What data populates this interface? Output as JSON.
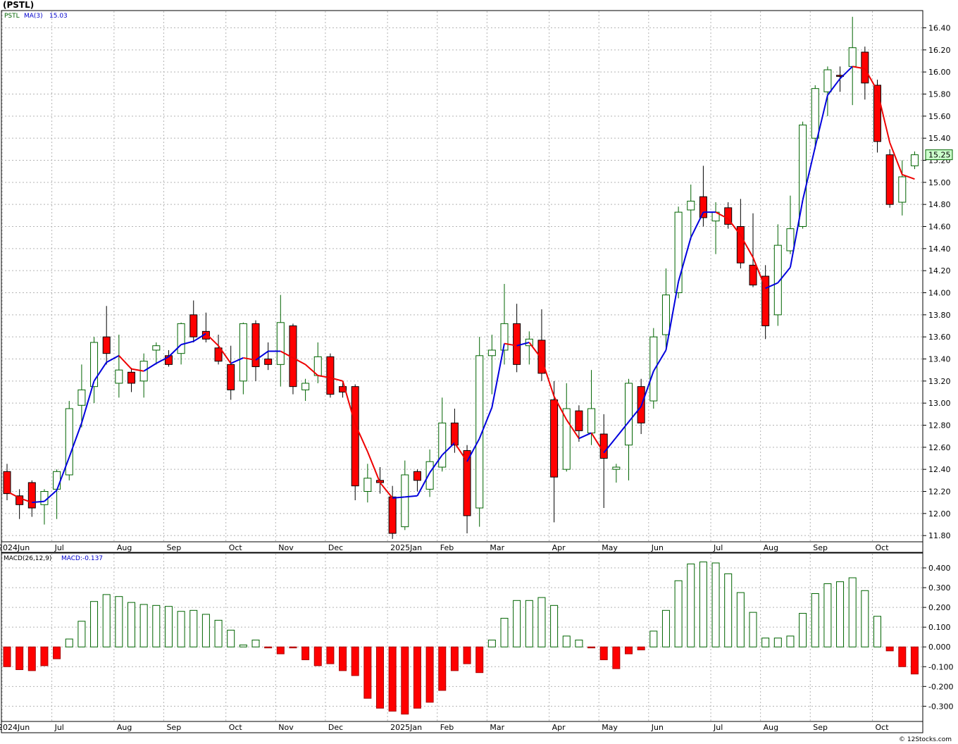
{
  "header": {
    "symbol_title": "(PSTL)"
  },
  "price_panel": {
    "legend_symbol": "PSTL",
    "legend_ma": "MA(3)",
    "legend_ma_value": "15.03",
    "last_price_label": "15.25"
  },
  "macd_panel": {
    "legend_params": "MACD(26,12,9)",
    "legend_value": "MACD:-0.137"
  },
  "footer": {
    "credit": "© 12Stocks.com"
  },
  "colors": {
    "up": "#006400",
    "down": "#ff0000",
    "ma_up": "#0000dd",
    "ma_down": "#ee0000",
    "grid": "#b4b4b4",
    "last_box": "#ccffcc"
  },
  "chart_data": [
    {
      "type": "candlestick",
      "title": "(PSTL)",
      "interval": "weekly",
      "ylim": [
        11.75,
        16.55
      ],
      "y_ticks": [
        "11.80",
        "12.00",
        "12.20",
        "12.40",
        "12.60",
        "12.80",
        "13.00",
        "13.20",
        "13.40",
        "13.60",
        "13.80",
        "14.00",
        "14.20",
        "14.40",
        "14.60",
        "14.80",
        "15.00",
        "15.20",
        "15.40",
        "15.60",
        "15.80",
        "16.00",
        "16.20",
        "16.40"
      ],
      "x_labels": [
        "2024Jun",
        "Jul",
        "Aug",
        "Sep",
        "Oct",
        "Nov",
        "Dec",
        "2025Jan",
        "Feb",
        "Mar",
        "Apr",
        "May",
        "Jun",
        "Jul",
        "Aug",
        "Sep",
        "Oct"
      ],
      "x_label_week": [
        0,
        4,
        9,
        13,
        18,
        22,
        26,
        31,
        35,
        39,
        44,
        48,
        52,
        57,
        61,
        65,
        70
      ],
      "candles": [
        {
          "o": 12.38,
          "h": 12.45,
          "l": 12.12,
          "c": 12.18
        },
        {
          "o": 12.16,
          "h": 12.22,
          "l": 11.95,
          "c": 12.08
        },
        {
          "o": 12.28,
          "h": 12.3,
          "l": 11.97,
          "c": 12.05
        },
        {
          "o": 12.08,
          "h": 12.22,
          "l": 11.9,
          "c": 12.2
        },
        {
          "o": 12.22,
          "h": 12.4,
          "l": 11.95,
          "c": 12.38
        },
        {
          "o": 12.35,
          "h": 13.02,
          "l": 12.3,
          "c": 12.95
        },
        {
          "o": 12.98,
          "h": 13.35,
          "l": 12.78,
          "c": 13.12
        },
        {
          "o": 13.15,
          "h": 13.6,
          "l": 13.0,
          "c": 13.55
        },
        {
          "o": 13.6,
          "h": 13.88,
          "l": 13.35,
          "c": 13.45
        },
        {
          "o": 13.18,
          "h": 13.62,
          "l": 13.05,
          "c": 13.3
        },
        {
          "o": 13.28,
          "h": 13.32,
          "l": 13.1,
          "c": 13.18
        },
        {
          "o": 13.2,
          "h": 13.45,
          "l": 13.05,
          "c": 13.38
        },
        {
          "o": 13.48,
          "h": 13.55,
          "l": 13.35,
          "c": 13.52
        },
        {
          "o": 13.43,
          "h": 13.48,
          "l": 13.33,
          "c": 13.35
        },
        {
          "o": 13.45,
          "h": 13.73,
          "l": 13.35,
          "c": 13.72
        },
        {
          "o": 13.8,
          "h": 13.93,
          "l": 13.55,
          "c": 13.6
        },
        {
          "o": 13.65,
          "h": 13.82,
          "l": 13.55,
          "c": 13.58
        },
        {
          "o": 13.5,
          "h": 13.62,
          "l": 13.35,
          "c": 13.38
        },
        {
          "o": 13.35,
          "h": 13.52,
          "l": 13.03,
          "c": 13.12
        },
        {
          "o": 13.2,
          "h": 13.73,
          "l": 13.08,
          "c": 13.72
        },
        {
          "o": 13.72,
          "h": 13.75,
          "l": 13.2,
          "c": 13.33
        },
        {
          "o": 13.4,
          "h": 13.55,
          "l": 13.3,
          "c": 13.35
        },
        {
          "o": 13.35,
          "h": 13.98,
          "l": 13.15,
          "c": 13.73
        },
        {
          "o": 13.7,
          "h": 13.72,
          "l": 13.08,
          "c": 13.15
        },
        {
          "o": 13.12,
          "h": 13.22,
          "l": 13.02,
          "c": 13.18
        },
        {
          "o": 13.25,
          "h": 13.55,
          "l": 13.18,
          "c": 13.42
        },
        {
          "o": 13.42,
          "h": 13.45,
          "l": 13.05,
          "c": 13.08
        },
        {
          "o": 13.15,
          "h": 13.2,
          "l": 13.05,
          "c": 13.1
        },
        {
          "o": 13.15,
          "h": 13.17,
          "l": 12.12,
          "c": 12.25
        },
        {
          "o": 12.2,
          "h": 12.45,
          "l": 12.1,
          "c": 12.32
        },
        {
          "o": 12.3,
          "h": 12.42,
          "l": 12.18,
          "c": 12.28
        },
        {
          "o": 12.15,
          "h": 12.25,
          "l": 11.77,
          "c": 11.82
        },
        {
          "o": 11.88,
          "h": 12.48,
          "l": 11.85,
          "c": 12.35
        },
        {
          "o": 12.38,
          "h": 12.4,
          "l": 12.2,
          "c": 12.3
        },
        {
          "o": 12.22,
          "h": 12.58,
          "l": 12.15,
          "c": 12.47
        },
        {
          "o": 12.42,
          "h": 13.05,
          "l": 12.38,
          "c": 12.82
        },
        {
          "o": 12.82,
          "h": 12.95,
          "l": 12.55,
          "c": 12.62
        },
        {
          "o": 12.57,
          "h": 12.62,
          "l": 11.82,
          "c": 11.98
        },
        {
          "o": 12.05,
          "h": 13.6,
          "l": 11.88,
          "c": 13.43
        },
        {
          "o": 13.43,
          "h": 13.62,
          "l": 13.08,
          "c": 13.48
        },
        {
          "o": 13.48,
          "h": 14.08,
          "l": 13.35,
          "c": 13.72
        },
        {
          "o": 13.72,
          "h": 13.9,
          "l": 13.28,
          "c": 13.35
        },
        {
          "o": 13.52,
          "h": 13.65,
          "l": 13.35,
          "c": 13.58
        },
        {
          "o": 13.57,
          "h": 13.85,
          "l": 13.2,
          "c": 13.27
        },
        {
          "o": 13.03,
          "h": 13.2,
          "l": 11.92,
          "c": 12.33
        },
        {
          "o": 12.4,
          "h": 13.18,
          "l": 12.38,
          "c": 12.95
        },
        {
          "o": 12.93,
          "h": 12.98,
          "l": 12.65,
          "c": 12.75
        },
        {
          "o": 12.73,
          "h": 13.3,
          "l": 12.62,
          "c": 12.95
        },
        {
          "o": 12.72,
          "h": 12.9,
          "l": 12.05,
          "c": 12.5
        },
        {
          "o": 12.4,
          "h": 12.45,
          "l": 12.28,
          "c": 12.42
        },
        {
          "o": 12.62,
          "h": 13.22,
          "l": 12.3,
          "c": 13.18
        },
        {
          "o": 13.15,
          "h": 13.22,
          "l": 12.72,
          "c": 12.82
        },
        {
          "o": 13.02,
          "h": 13.68,
          "l": 12.95,
          "c": 13.6
        },
        {
          "o": 13.62,
          "h": 14.22,
          "l": 13.5,
          "c": 13.98
        },
        {
          "o": 14.0,
          "h": 14.78,
          "l": 13.95,
          "c": 14.73
        },
        {
          "o": 14.75,
          "h": 14.98,
          "l": 14.48,
          "c": 14.83
        },
        {
          "o": 14.87,
          "h": 15.15,
          "l": 14.6,
          "c": 14.68
        },
        {
          "o": 14.65,
          "h": 14.82,
          "l": 14.35,
          "c": 14.73
        },
        {
          "o": 14.77,
          "h": 14.82,
          "l": 14.58,
          "c": 14.62
        },
        {
          "o": 14.6,
          "h": 14.85,
          "l": 14.22,
          "c": 14.27
        },
        {
          "o": 14.25,
          "h": 14.72,
          "l": 14.05,
          "c": 14.07
        },
        {
          "o": 14.15,
          "h": 14.25,
          "l": 13.58,
          "c": 13.7
        },
        {
          "o": 13.8,
          "h": 14.62,
          "l": 13.7,
          "c": 14.43
        },
        {
          "o": 14.38,
          "h": 14.88,
          "l": 14.35,
          "c": 14.58
        },
        {
          "o": 14.6,
          "h": 15.55,
          "l": 14.58,
          "c": 15.52
        },
        {
          "o": 15.4,
          "h": 15.88,
          "l": 15.3,
          "c": 15.85
        },
        {
          "o": 15.82,
          "h": 16.05,
          "l": 15.6,
          "c": 16.02
        },
        {
          "o": 15.97,
          "h": 16.05,
          "l": 15.82,
          "c": 15.96
        },
        {
          "o": 16.05,
          "h": 16.5,
          "l": 15.7,
          "c": 16.22
        },
        {
          "o": 16.18,
          "h": 16.23,
          "l": 15.75,
          "c": 15.9
        },
        {
          "o": 15.88,
          "h": 15.93,
          "l": 15.27,
          "c": 15.37
        },
        {
          "o": 15.25,
          "h": 15.3,
          "l": 14.77,
          "c": 14.8
        },
        {
          "o": 14.82,
          "h": 15.2,
          "l": 14.7,
          "c": 15.05
        },
        {
          "o": 15.15,
          "h": 15.28,
          "l": 15.12,
          "c": 15.25
        }
      ],
      "ma3": [
        {
          "w": 0,
          "v": 12.2
        },
        {
          "w": 1,
          "v": 12.14
        },
        {
          "w": 2,
          "v": 12.1
        },
        {
          "w": 3,
          "v": 12.11
        },
        {
          "w": 4,
          "v": 12.21
        },
        {
          "w": 5,
          "v": 12.51
        },
        {
          "w": 6,
          "v": 12.82
        },
        {
          "w": 7,
          "v": 13.2
        },
        {
          "w": 8,
          "v": 13.37
        },
        {
          "w": 9,
          "v": 13.43
        },
        {
          "w": 10,
          "v": 13.31
        },
        {
          "w": 11,
          "v": 13.29
        },
        {
          "w": 12,
          "v": 13.36
        },
        {
          "w": 13,
          "v": 13.42
        },
        {
          "w": 14,
          "v": 13.53
        },
        {
          "w": 15,
          "v": 13.56
        },
        {
          "w": 16,
          "v": 13.63
        },
        {
          "w": 17,
          "v": 13.52
        },
        {
          "w": 18,
          "v": 13.36
        },
        {
          "w": 19,
          "v": 13.41
        },
        {
          "w": 20,
          "v": 13.39
        },
        {
          "w": 21,
          "v": 13.47
        },
        {
          "w": 22,
          "v": 13.47
        },
        {
          "w": 23,
          "v": 13.41
        },
        {
          "w": 24,
          "v": 13.35
        },
        {
          "w": 25,
          "v": 13.25
        },
        {
          "w": 26,
          "v": 13.23
        },
        {
          "w": 27,
          "v": 13.2
        },
        {
          "w": 28,
          "v": 12.81
        },
        {
          "w": 29,
          "v": 12.56
        },
        {
          "w": 30,
          "v": 12.28
        },
        {
          "w": 31,
          "v": 12.14
        },
        {
          "w": 32,
          "v": 12.15
        },
        {
          "w": 33,
          "v": 12.16
        },
        {
          "w": 34,
          "v": 12.37
        },
        {
          "w": 35,
          "v": 12.53
        },
        {
          "w": 36,
          "v": 12.64
        },
        {
          "w": 37,
          "v": 12.47
        },
        {
          "w": 38,
          "v": 12.68
        },
        {
          "w": 39,
          "v": 12.96
        },
        {
          "w": 40,
          "v": 13.54
        },
        {
          "w": 41,
          "v": 13.52
        },
        {
          "w": 42,
          "v": 13.55
        },
        {
          "w": 43,
          "v": 13.4
        },
        {
          "w": 44,
          "v": 13.06
        },
        {
          "w": 45,
          "v": 12.85
        },
        {
          "w": 46,
          "v": 12.68
        },
        {
          "w": 47,
          "v": 12.73
        },
        {
          "w": 48,
          "v": 12.55
        },
        {
          "w": 49,
          "v": 12.69
        },
        {
          "w": 50,
          "v": 12.83
        },
        {
          "w": 51,
          "v": 12.97
        },
        {
          "w": 52,
          "v": 13.29
        },
        {
          "w": 53,
          "v": 13.48
        },
        {
          "w": 54,
          "v": 14.1
        },
        {
          "w": 55,
          "v": 14.5
        },
        {
          "w": 56,
          "v": 14.73
        },
        {
          "w": 57,
          "v": 14.73
        },
        {
          "w": 58,
          "v": 14.67
        },
        {
          "w": 59,
          "v": 14.52
        },
        {
          "w": 60,
          "v": 14.32
        },
        {
          "w": 61,
          "v": 14.04
        },
        {
          "w": 62,
          "v": 14.09
        },
        {
          "w": 63,
          "v": 14.23
        },
        {
          "w": 64,
          "v": 14.84
        },
        {
          "w": 65,
          "v": 15.32
        },
        {
          "w": 66,
          "v": 15.79
        },
        {
          "w": 67,
          "v": 15.94
        },
        {
          "w": 68,
          "v": 16.05
        },
        {
          "w": 69,
          "v": 16.03
        },
        {
          "w": 70,
          "v": 15.83
        },
        {
          "w": 71,
          "v": 15.36
        },
        {
          "w": 72,
          "v": 15.07
        },
        {
          "w": 73,
          "v": 15.03
        }
      ]
    },
    {
      "type": "bar",
      "title": "MACD(26,12,9)",
      "ylim": [
        -0.37,
        0.45
      ],
      "y_ticks": [
        "-0.300",
        "-0.200",
        "-0.100",
        "0.000",
        "0.100",
        "0.200",
        "0.300",
        "0.400"
      ],
      "x_labels": [
        "2024Jun",
        "Jul",
        "Aug",
        "Sep",
        "Oct",
        "Nov",
        "Dec",
        "2025Jan",
        "Feb",
        "Mar",
        "Apr",
        "May",
        "Jun",
        "Jul",
        "Aug",
        "Sep",
        "Oct"
      ],
      "x_label_week": [
        0,
        4,
        9,
        13,
        18,
        22,
        26,
        31,
        35,
        39,
        44,
        48,
        52,
        57,
        61,
        65,
        70
      ],
      "values": [
        -0.1,
        -0.115,
        -0.12,
        -0.095,
        -0.06,
        0.04,
        0.13,
        0.23,
        0.265,
        0.255,
        0.225,
        0.215,
        0.21,
        0.205,
        0.18,
        0.185,
        0.165,
        0.135,
        0.085,
        0.01,
        0.035,
        -0.005,
        -0.035,
        -0.005,
        -0.065,
        -0.095,
        -0.085,
        -0.12,
        -0.145,
        -0.26,
        -0.31,
        -0.325,
        -0.34,
        -0.31,
        -0.28,
        -0.22,
        -0.12,
        -0.085,
        -0.13,
        0.035,
        0.145,
        0.235,
        0.235,
        0.25,
        0.21,
        0.055,
        0.035,
        -0.005,
        -0.065,
        -0.11,
        -0.035,
        -0.015,
        0.08,
        0.185,
        0.335,
        0.42,
        0.43,
        0.425,
        0.37,
        0.275,
        0.175,
        0.045,
        0.045,
        0.055,
        0.17,
        0.27,
        0.32,
        0.33,
        0.35,
        0.285,
        0.155,
        -0.02,
        -0.1,
        -0.137
      ]
    }
  ]
}
